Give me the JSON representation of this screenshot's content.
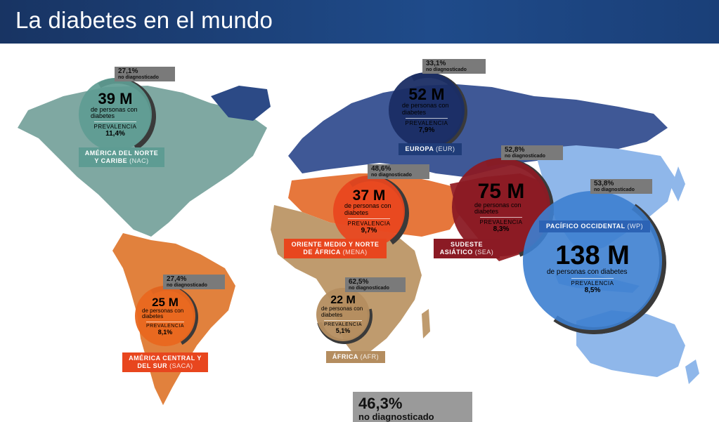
{
  "header": {
    "title": "La diabetes en el mundo"
  },
  "regions": {
    "nac": {
      "count": "39 M",
      "desc": "de personas con diabetes",
      "prev_label": "PREVALENCIA",
      "prev_value": "11,4%",
      "nd_pct": "27,1%",
      "nd_label": "no diagnosticado",
      "name": "AMÉRICA DEL NORTE Y CARIBE",
      "code": "(NAC)"
    },
    "eur": {
      "count": "52 M",
      "desc": "de personas con diabetes",
      "prev_label": "PREVALENCIA",
      "prev_value": "7,9%",
      "nd_pct": "33,1%",
      "nd_label": "no diagnosticado",
      "name": "EUROPA",
      "code": "(EUR)"
    },
    "mena": {
      "count": "37 M",
      "desc": "de personas con diabetes",
      "prev_label": "PREVALENCIA",
      "prev_value": "9,7%",
      "nd_pct": "48,6%",
      "nd_label": "no diagnosticado",
      "name": "ORIENTE MEDIO Y NORTE DE ÁFRICA",
      "code": "(MENA)"
    },
    "sea": {
      "count": "75 M",
      "desc": "de personas con diabetes",
      "prev_label": "PREVALENCIA",
      "prev_value": "8,3%",
      "nd_pct": "52,8%",
      "nd_label": "no diagnosticado",
      "name": "SUDESTE ASIÁTICO",
      "code": "(SEA)"
    },
    "wp": {
      "count": "138 M",
      "desc": "de personas con diabetes",
      "prev_label": "PREVALENCIA",
      "prev_value": "8,5%",
      "nd_pct": "53,8%",
      "nd_label": "no diagnosticado",
      "name": "PACÍFICO OCCIDENTAL",
      "code": "(WP)"
    },
    "saca": {
      "count": "25 M",
      "desc": "de personas con diabetes",
      "prev_label": "PREVALENCIA",
      "prev_value": "8,1%",
      "nd_pct": "27,4%",
      "nd_label": "no diagnosticado",
      "name": "AMÉRICA CENTRAL Y DEL SUR",
      "code": "(SACA)"
    },
    "afr": {
      "count": "22 M",
      "desc": "de personas con diabetes",
      "prev_label": "PREVALENCIA",
      "prev_value": "5,1%",
      "nd_pct": "62,5%",
      "nd_label": "no diagnosticado",
      "name": "ÁFRICA",
      "code": "(AFR)"
    }
  },
  "global": {
    "pct": "46,3%",
    "label": "no diagnosticado"
  },
  "colors": {
    "nac": "#5e9c93",
    "eur": "#1f3c78",
    "mena": "#e8461e",
    "sea": "#8b1a24",
    "wp": "#3d7fd0",
    "saca": "#e9671f",
    "afr": "#b48d5f",
    "header": "#1f4b8a"
  }
}
